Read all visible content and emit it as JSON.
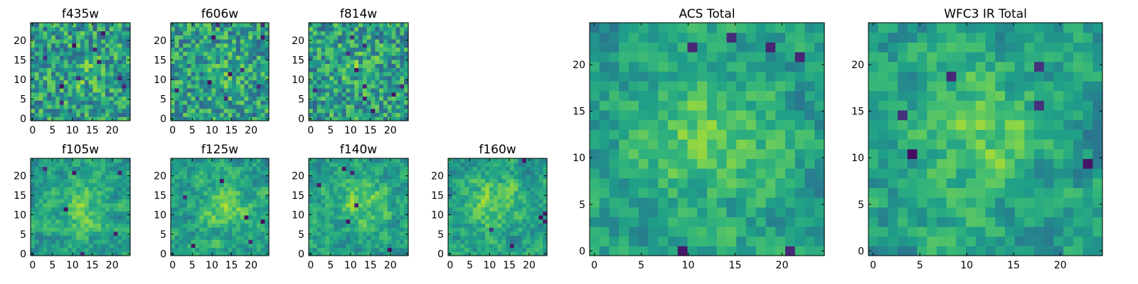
{
  "chart_data": [
    {
      "type": "heatmap",
      "title": "f435w",
      "xticks": [
        0,
        5,
        10,
        15,
        20
      ],
      "yticks": [
        0,
        5,
        10,
        15,
        20
      ],
      "xlim": [
        0,
        24
      ],
      "ylim": [
        0,
        24
      ],
      "grid_size": 24,
      "colormap": "viridis"
    },
    {
      "type": "heatmap",
      "title": "f606w",
      "xticks": [
        0,
        5,
        10,
        15,
        20
      ],
      "yticks": [
        0,
        5,
        10,
        15,
        20
      ],
      "xlim": [
        0,
        24
      ],
      "ylim": [
        0,
        24
      ],
      "grid_size": 24,
      "colormap": "viridis"
    },
    {
      "type": "heatmap",
      "title": "f814w",
      "xticks": [
        0,
        5,
        10,
        15,
        20
      ],
      "yticks": [
        0,
        5,
        10,
        15,
        20
      ],
      "xlim": [
        0,
        24
      ],
      "ylim": [
        0,
        24
      ],
      "grid_size": 24,
      "colormap": "viridis"
    },
    {
      "type": "heatmap",
      "title": "f105w",
      "xticks": [
        0,
        5,
        10,
        15,
        20
      ],
      "yticks": [
        0,
        5,
        10,
        15,
        20
      ],
      "xlim": [
        0,
        24
      ],
      "ylim": [
        0,
        24
      ],
      "grid_size": 24,
      "colormap": "viridis"
    },
    {
      "type": "heatmap",
      "title": "f125w",
      "xticks": [
        0,
        5,
        10,
        15,
        20
      ],
      "yticks": [
        0,
        5,
        10,
        15,
        20
      ],
      "xlim": [
        0,
        24
      ],
      "ylim": [
        0,
        24
      ],
      "grid_size": 24,
      "colormap": "viridis"
    },
    {
      "type": "heatmap",
      "title": "f140w",
      "xticks": [
        0,
        5,
        10,
        15,
        20
      ],
      "yticks": [
        0,
        5,
        10,
        15,
        20
      ],
      "xlim": [
        0,
        24
      ],
      "ylim": [
        0,
        24
      ],
      "grid_size": 24,
      "colormap": "viridis"
    },
    {
      "type": "heatmap",
      "title": "f160w",
      "xticks": [
        0,
        5,
        10,
        15,
        20
      ],
      "yticks": [
        0,
        5,
        10,
        15,
        20
      ],
      "xlim": [
        0,
        24
      ],
      "ylim": [
        0,
        24
      ],
      "grid_size": 24,
      "colormap": "viridis"
    },
    {
      "type": "heatmap",
      "title": "ACS Total",
      "xticks": [
        0,
        5,
        10,
        15,
        20
      ],
      "yticks": [
        0,
        5,
        10,
        15,
        20
      ],
      "xlim": [
        0,
        24
      ],
      "ylim": [
        0,
        24
      ],
      "grid_size": 24,
      "colormap": "viridis"
    },
    {
      "type": "heatmap",
      "title": "WFC3 IR Total",
      "xticks": [
        0,
        5,
        10,
        15,
        20
      ],
      "yticks": [
        0,
        5,
        10,
        15,
        20
      ],
      "xlim": [
        0,
        24
      ],
      "ylim": [
        0,
        24
      ],
      "grid_size": 24,
      "colormap": "viridis"
    }
  ]
}
